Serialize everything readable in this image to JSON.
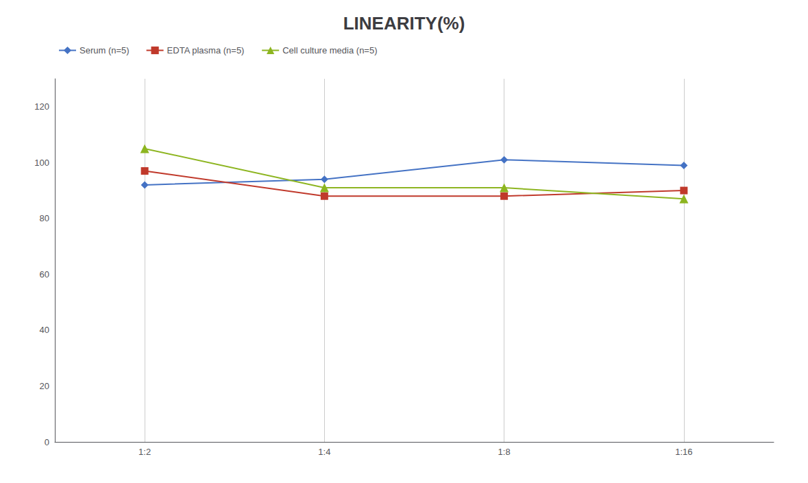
{
  "chart_data": {
    "type": "line",
    "title": "LINEARITY(%)",
    "categories": [
      "1:2",
      "1:4",
      "1:8",
      "1:16"
    ],
    "series": [
      {
        "name": "Serum (n=5)",
        "color": "#4472C4",
        "marker": "diamond",
        "values": [
          92,
          94,
          101,
          99
        ]
      },
      {
        "name": "EDTA plasma (n=5)",
        "color": "#C0392B",
        "marker": "square",
        "values": [
          97,
          88,
          88,
          90
        ]
      },
      {
        "name": "Cell culture media (n=5)",
        "color": "#8DB520",
        "marker": "triangle",
        "values": [
          105,
          91,
          91,
          87
        ]
      }
    ],
    "ylim": [
      0,
      130
    ],
    "yticks": [
      0,
      20,
      40,
      60,
      80,
      100,
      120
    ],
    "grid": "x",
    "legend": "upper left"
  }
}
